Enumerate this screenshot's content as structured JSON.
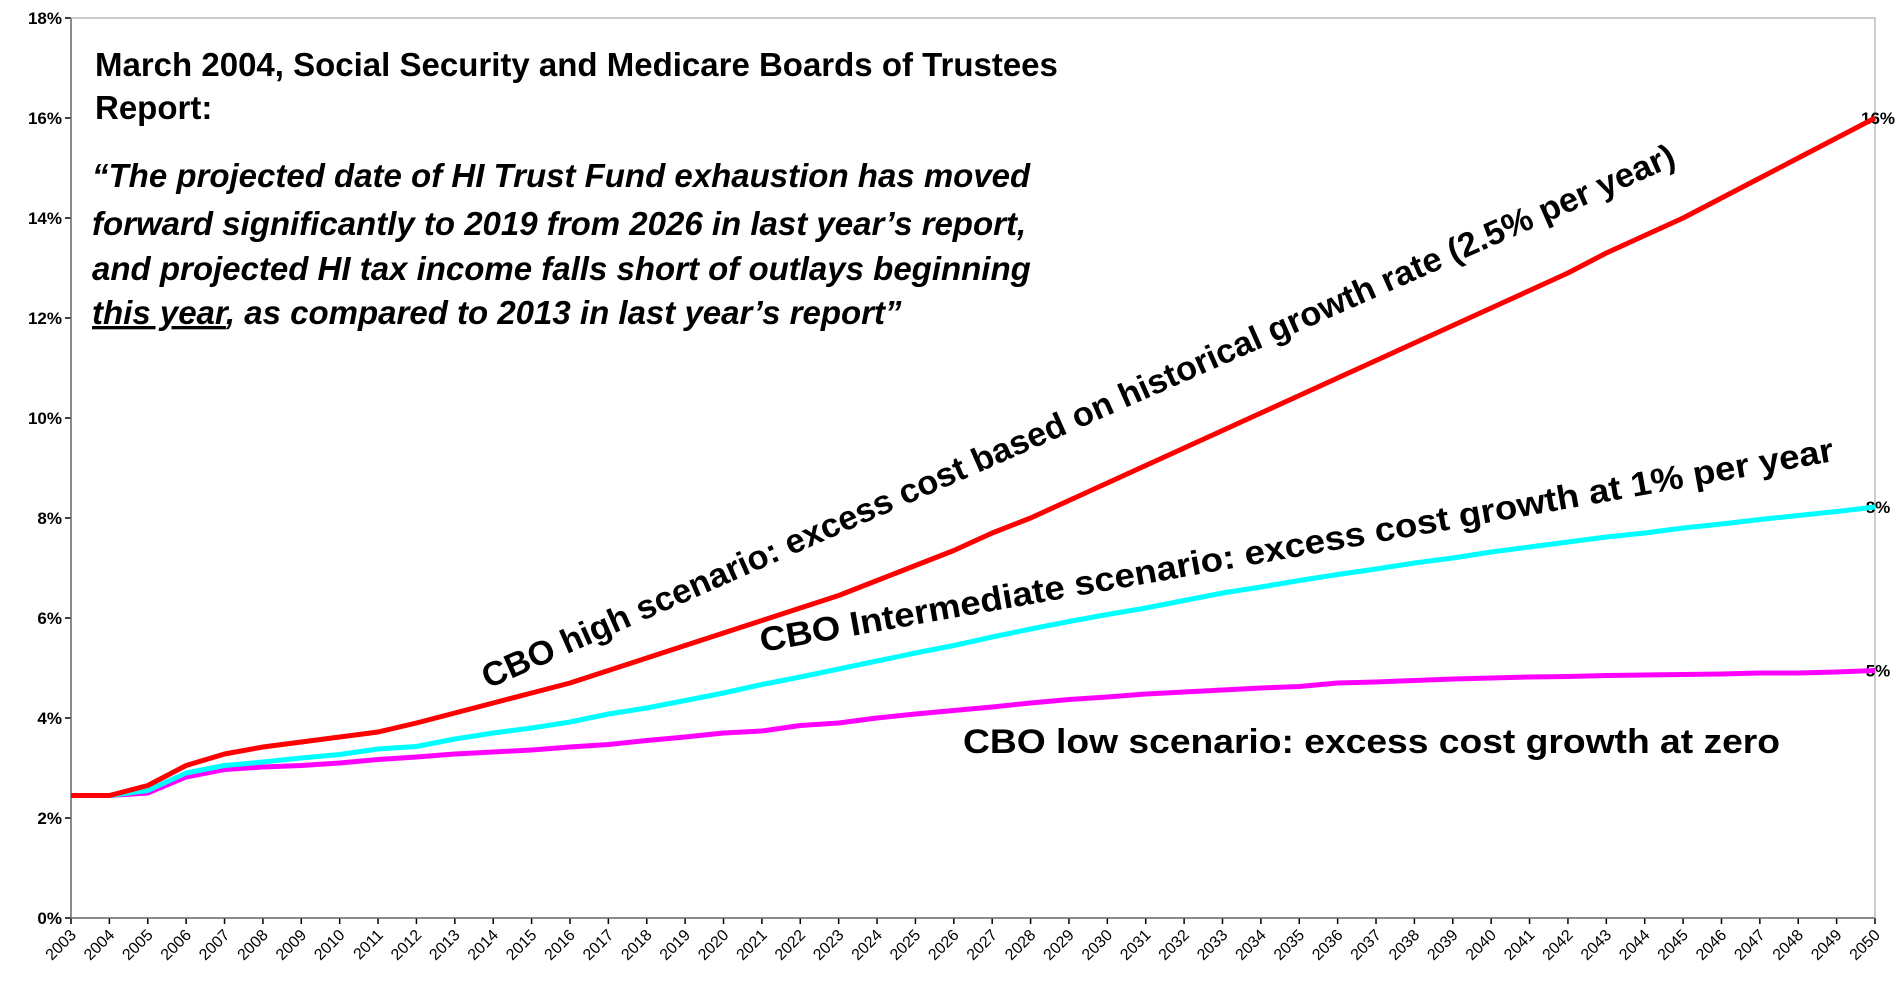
{
  "chart_data": {
    "type": "line",
    "title_lines": [
      "March 2004, Social Security and Medicare Boards of Trustees",
      "Report:"
    ],
    "quote_lines": [
      "“The projected date of HI Trust Fund exhaustion has moved",
      "forward significantly to 2019 from 2026 in last year’s report,",
      "and projected HI tax income falls short of outlays beginning"
    ],
    "quote_underlined": "this year",
    "quote_end": ", as compared to 2013 in last year’s report”",
    "categories": [
      "2003",
      "2004",
      "2005",
      "2006",
      "2007",
      "2008",
      "2009",
      "2010",
      "2011",
      "2012",
      "2013",
      "2014",
      "2015",
      "2016",
      "2017",
      "2018",
      "2019",
      "2020",
      "2021",
      "2022",
      "2023",
      "2024",
      "2025",
      "2026",
      "2027",
      "2028",
      "2029",
      "2030",
      "2031",
      "2032",
      "2033",
      "2034",
      "2035",
      "2036",
      "2037",
      "2038",
      "2039",
      "2040",
      "2041",
      "2042",
      "2043",
      "2044",
      "2045",
      "2046",
      "2047",
      "2048",
      "2049",
      "2050"
    ],
    "series": [
      {
        "name": "CBO high scenario: excess cost based on historical growth rate (2.5% per year)",
        "color": "#ff0000",
        "values": [
          2.45,
          2.45,
          2.65,
          3.05,
          3.28,
          3.42,
          3.52,
          3.62,
          3.72,
          3.9,
          4.1,
          4.3,
          4.5,
          4.7,
          4.95,
          5.2,
          5.45,
          5.7,
          5.95,
          6.2,
          6.45,
          6.75,
          7.05,
          7.35,
          7.7,
          8.0,
          8.35,
          8.7,
          9.05,
          9.4,
          9.75,
          10.1,
          10.45,
          10.8,
          11.15,
          11.5,
          11.85,
          12.2,
          12.55,
          12.9,
          13.3,
          13.65,
          14.0,
          14.4,
          14.8,
          15.2,
          15.6,
          16.0
        ],
        "value_labels": [
          null,
          null,
          null,
          null,
          null,
          null,
          null,
          null,
          null,
          null,
          null,
          null,
          null,
          null,
          null,
          null,
          null,
          null,
          null,
          null,
          null,
          null,
          null,
          null,
          null,
          null,
          null,
          null,
          null,
          null,
          null,
          null,
          null,
          null,
          null,
          null,
          null,
          null,
          null,
          null,
          null,
          null,
          null,
          null,
          null,
          null,
          null,
          "16%"
        ]
      },
      {
        "name": "CBO Intermediate scenario: excess cost growth at 1% per year",
        "color": "#00ffff",
        "values": [
          2.45,
          2.45,
          2.55,
          2.9,
          3.05,
          3.12,
          3.2,
          3.27,
          3.38,
          3.43,
          3.58,
          3.7,
          3.8,
          3.92,
          4.08,
          4.2,
          4.35,
          4.5,
          4.67,
          4.82,
          4.98,
          5.14,
          5.3,
          5.45,
          5.62,
          5.78,
          5.93,
          6.07,
          6.2,
          6.35,
          6.5,
          6.62,
          6.75,
          6.87,
          6.98,
          7.1,
          7.2,
          7.32,
          7.42,
          7.52,
          7.62,
          7.7,
          7.8,
          7.88,
          7.97,
          8.05,
          8.13,
          8.22
        ],
        "value_labels": [
          null,
          null,
          null,
          null,
          null,
          null,
          null,
          null,
          null,
          null,
          null,
          null,
          null,
          null,
          null,
          null,
          null,
          null,
          null,
          null,
          null,
          null,
          null,
          null,
          null,
          null,
          null,
          null,
          null,
          null,
          null,
          null,
          null,
          null,
          null,
          null,
          null,
          null,
          null,
          null,
          null,
          null,
          null,
          null,
          null,
          null,
          null,
          "8%"
        ]
      },
      {
        "name": "CBO low scenario: excess cost growth at zero",
        "color": "#ff00ff",
        "values": [
          2.45,
          2.45,
          2.5,
          2.82,
          2.97,
          3.02,
          3.05,
          3.1,
          3.17,
          3.22,
          3.28,
          3.32,
          3.36,
          3.42,
          3.47,
          3.55,
          3.62,
          3.7,
          3.74,
          3.85,
          3.9,
          4.0,
          4.08,
          4.15,
          4.22,
          4.3,
          4.37,
          4.42,
          4.48,
          4.52,
          4.56,
          4.6,
          4.63,
          4.7,
          4.72,
          4.75,
          4.78,
          4.8,
          4.82,
          4.83,
          4.85,
          4.86,
          4.87,
          4.88,
          4.9,
          4.9,
          4.92,
          4.95
        ],
        "value_labels": [
          null,
          null,
          null,
          null,
          null,
          null,
          null,
          null,
          null,
          null,
          null,
          null,
          null,
          null,
          null,
          null,
          null,
          null,
          null,
          null,
          null,
          null,
          null,
          null,
          null,
          null,
          null,
          null,
          null,
          null,
          null,
          null,
          null,
          null,
          null,
          null,
          null,
          null,
          null,
          null,
          null,
          null,
          null,
          null,
          null,
          null,
          null,
          "5%"
        ]
      }
    ],
    "ylim": [
      0,
      18
    ],
    "yticks": [
      {
        "value": 0,
        "label": "0%"
      },
      {
        "value": 2,
        "label": "2%"
      },
      {
        "value": 4,
        "label": "4%"
      },
      {
        "value": 6,
        "label": "6%"
      },
      {
        "value": 8,
        "label": "8%"
      },
      {
        "value": 10,
        "label": "10%"
      },
      {
        "value": 12,
        "label": "12%"
      },
      {
        "value": 14,
        "label": "14%"
      },
      {
        "value": 16,
        "label": "16%"
      },
      {
        "value": 18,
        "label": "18%"
      }
    ],
    "grid": false
  }
}
